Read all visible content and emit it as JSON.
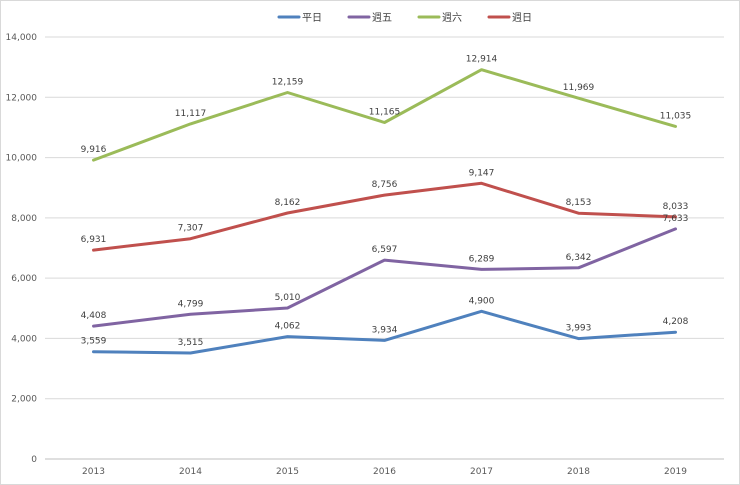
{
  "chart_data": {
    "type": "line",
    "title": "",
    "xlabel": "",
    "ylabel": "",
    "categories": [
      "2013",
      "2014",
      "2015",
      "2016",
      "2017",
      "2018",
      "2019"
    ],
    "ylim": [
      0,
      14000
    ],
    "yticks": [
      0,
      2000,
      4000,
      6000,
      8000,
      10000,
      12000,
      14000
    ],
    "ytick_labels": [
      "0",
      "2,000",
      "4,000",
      "6,000",
      "8,000",
      "10,000",
      "12,000",
      "14,000"
    ],
    "grid": true,
    "legend_position": "top-center",
    "series": [
      {
        "name": "平日",
        "color": "#4f81bd",
        "values": [
          3559,
          3515,
          4062,
          3934,
          4900,
          3993,
          4208
        ],
        "labels": [
          "3,559",
          "3,515",
          "4,062",
          "3,934",
          "4,900",
          "3,993",
          "4,208"
        ]
      },
      {
        "name": "週五",
        "color": "#8064a2",
        "values": [
          4408,
          4799,
          5010,
          6597,
          6289,
          6342,
          7633
        ],
        "labels": [
          "4,408",
          "4,799",
          "5,010",
          "6,597",
          "6,289",
          "6,342",
          "7,633"
        ]
      },
      {
        "name": "週六",
        "color": "#9bbb59",
        "values": [
          9916,
          11117,
          12159,
          11165,
          12914,
          11969,
          11035
        ],
        "labels": [
          "9,916",
          "11,117",
          "12,159",
          "11,165",
          "12,914",
          "11,969",
          "11,035"
        ]
      },
      {
        "name": "週日",
        "color": "#c0504d",
        "values": [
          6931,
          7307,
          8162,
          8756,
          9147,
          8153,
          8033
        ],
        "labels": [
          "6,931",
          "7,307",
          "8,162",
          "8,756",
          "9,147",
          "8,153",
          "8,033"
        ]
      }
    ]
  }
}
